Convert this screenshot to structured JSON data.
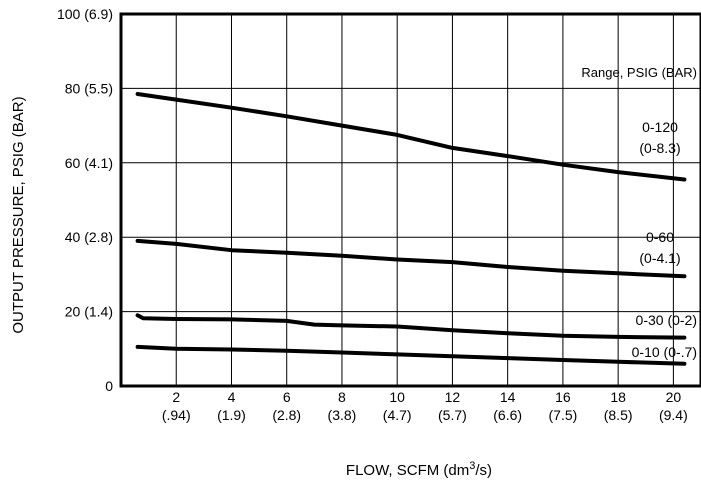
{
  "chart_data": {
    "type": "line",
    "title": "",
    "xlabel": "FLOW, SCFM (dm",
    "xlabel_superscript": "3",
    "xlabel_suffix": "/s)",
    "ylabel": "OUTPUT PRESSURE, PSIG (BAR)",
    "xlim": [
      0,
      21
    ],
    "ylim": [
      0,
      100
    ],
    "grid": true,
    "x_ticks": [
      {
        "value": 2,
        "label": "2",
        "sublabel": "(.94)"
      },
      {
        "value": 4,
        "label": "4",
        "sublabel": "(1.9)"
      },
      {
        "value": 6,
        "label": "6",
        "sublabel": "(2.8)"
      },
      {
        "value": 8,
        "label": "8",
        "sublabel": "(3.8)"
      },
      {
        "value": 10,
        "label": "10",
        "sublabel": "(4.7)"
      },
      {
        "value": 12,
        "label": "12",
        "sublabel": "(5.7)"
      },
      {
        "value": 14,
        "label": "14",
        "sublabel": "(6.6)"
      },
      {
        "value": 16,
        "label": "16",
        "sublabel": "(7.5)"
      },
      {
        "value": 18,
        "label": "18",
        "sublabel": "(8.5)"
      },
      {
        "value": 20,
        "label": "20",
        "sublabel": "(9.4)"
      }
    ],
    "y_ticks": [
      {
        "value": 0,
        "label": "0"
      },
      {
        "value": 20,
        "label": "20 (1.4)"
      },
      {
        "value": 40,
        "label": "40 (2.8)"
      },
      {
        "value": 60,
        "label": "60 (4.1)"
      },
      {
        "value": 80,
        "label": "80 (5.5)"
      },
      {
        "value": 100,
        "label": "100 (6.9)"
      }
    ],
    "legend_title": "Range, PSIG (BAR)",
    "series": [
      {
        "name": "0-120 (0-8.3)",
        "label_line1": "0-120",
        "label_line2": "(0-8.3)",
        "x": [
          0.6,
          2,
          4,
          6,
          8,
          10,
          12,
          14,
          16,
          18,
          20.4
        ],
        "y": [
          78.5,
          77,
          74.8,
          72.5,
          70,
          67.5,
          64,
          61.8,
          59.5,
          57.5,
          55.5
        ]
      },
      {
        "name": "0-60 (0-4.1)",
        "label_line1": "0-60",
        "label_line2": "(0-4.1)",
        "x": [
          0.6,
          2,
          4,
          6,
          8,
          10,
          12,
          14,
          16,
          18,
          20.4
        ],
        "y": [
          39,
          38.2,
          36.5,
          35.8,
          35,
          34,
          33.3,
          32,
          31,
          30.3,
          29.5
        ]
      },
      {
        "name": "0-30 (0-2)",
        "label_line1": "0-30 (0-2)",
        "label_line2": "",
        "x": [
          0.6,
          0.8,
          2,
          4,
          6,
          7,
          8,
          10,
          12,
          14,
          16,
          18,
          20.4
        ],
        "y": [
          19,
          18.2,
          18,
          17.9,
          17.5,
          16.5,
          16.3,
          16,
          15,
          14.2,
          13.5,
          13.2,
          13
        ]
      },
      {
        "name": "0-10 (0-.7)",
        "label_line1": "0-10 (0-.7)",
        "label_line2": "",
        "x": [
          0.6,
          2,
          4,
          6,
          8,
          10,
          12,
          14,
          16,
          18,
          20.4
        ],
        "y": [
          10.5,
          10,
          9.8,
          9.5,
          9,
          8.5,
          8,
          7.5,
          7,
          6.5,
          6
        ]
      }
    ]
  }
}
